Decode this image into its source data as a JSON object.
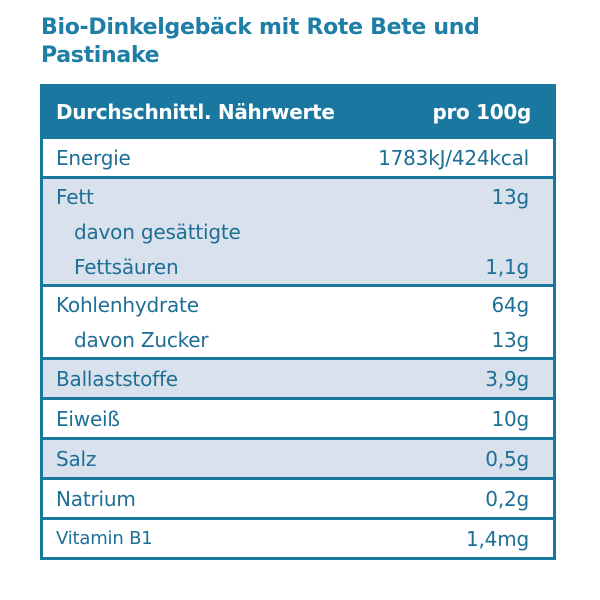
{
  "title": "Bio-Dinkelgebäck mit Rote Bete und Pastinake",
  "table": {
    "header": {
      "label": "Durchschnittl. Nährwerte",
      "unit": "pro 100g"
    },
    "colors": {
      "header_bg": "#1a78a0",
      "shade_bg": "#d9e1ec",
      "text": "#1e6f96",
      "title": "#1e7ea6"
    },
    "rows": [
      {
        "label": "Energie",
        "value": "1783kJ/424kcal"
      },
      {
        "label": "Fett",
        "value": "13g",
        "sub_label_1": "davon gesättigte",
        "sub_label_2": "Fettsäuren",
        "sub_value": "1,1g"
      },
      {
        "label": "Kohlenhydrate",
        "value": "64g",
        "sub_label": "davon Zucker",
        "sub_value": "13g"
      },
      {
        "label": "Ballaststoffe",
        "value": "3,9g"
      },
      {
        "label": "Eiweiß",
        "value": "10g"
      },
      {
        "label": "Salz",
        "value": "0,5g"
      },
      {
        "label": "Natrium",
        "value": "0,2g"
      },
      {
        "label": "Vitamin B1",
        "value": "1,4mg"
      }
    ]
  }
}
